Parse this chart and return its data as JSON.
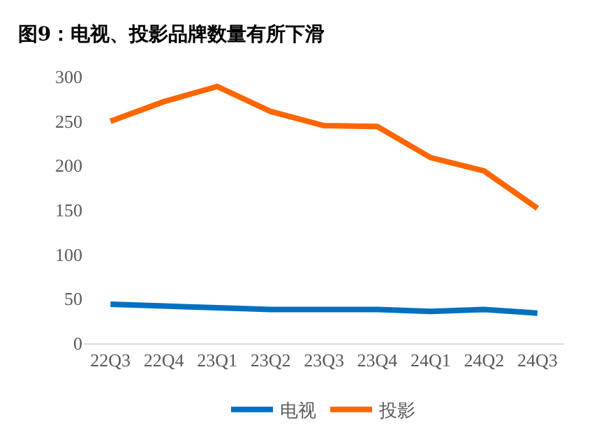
{
  "chart_data": {
    "type": "line",
    "title": "图9：电视、投影品牌数量有所下滑",
    "categories": [
      "22Q3",
      "22Q4",
      "23Q1",
      "23Q2",
      "23Q3",
      "23Q4",
      "24Q1",
      "24Q2",
      "24Q3"
    ],
    "series": [
      {
        "name": "电视",
        "color": "#0070c0",
        "values": [
          44,
          42,
          40,
          38,
          38,
          38,
          36,
          38,
          34
        ]
      },
      {
        "name": "投影",
        "color": "#ff6600",
        "values": [
          250,
          272,
          289,
          261,
          245,
          244,
          209,
          194,
          152
        ]
      }
    ],
    "ylim": [
      0,
      300
    ],
    "yticks": [
      0,
      50,
      100,
      150,
      200,
      250,
      300
    ],
    "grid": false,
    "legend": "bottom",
    "marker": "none",
    "line_style": "solid"
  }
}
